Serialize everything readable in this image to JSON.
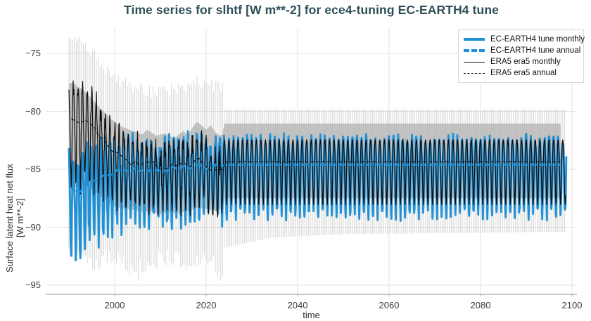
{
  "page": {
    "title": "Time series for slhtf [W m**-2] for ece4-tuning EC-EARTH4 tune"
  },
  "colors": {
    "title": "#2d4f57",
    "model_blue": "#2191d6",
    "ref_black": "#0d0d0d",
    "band_gray": "#9e9e9e",
    "whisker_gray": "#b4b4b4",
    "grid": "#e3e3e3",
    "spine": "#b8b8b8",
    "tick_text": "#3a3a3a"
  },
  "legend": {
    "items": [
      {
        "label": "EC-EARTH4 tune monthly",
        "swatch": "blue-solid"
      },
      {
        "label": "EC-EARTH4 tune annual",
        "swatch": "blue-dashed"
      },
      {
        "label": "ERA5 era5 monthly",
        "swatch": "black-solid"
      },
      {
        "label": "ERA5 era5 annual",
        "swatch": "black-dashed"
      }
    ]
  },
  "axes": {
    "x_label": "time",
    "y_label_line1": "Surface latent heat net flux",
    "y_label_line2": "[W m**-2]"
  },
  "chart_data": {
    "type": "line",
    "title": "Time series for slhtf [W m**-2] for ece4-tuning EC-EARTH4 tune",
    "xlabel": "time",
    "ylabel": "Surface latent heat net flux [W m**-2]",
    "xlim": [
      1984.9,
      2101.2
    ],
    "ylim": [
      -95.9,
      -72.8
    ],
    "xticks": [
      2000,
      2020,
      2040,
      2060,
      2080,
      2100
    ],
    "xtick_labels": [
      "2000",
      "2020",
      "2040",
      "2060",
      "2080",
      "2100"
    ],
    "yticks": [
      -75,
      -80,
      -85,
      -90,
      -95
    ],
    "ytick_labels": [
      "−75",
      "−80",
      "−85",
      "−90",
      "−95"
    ],
    "grid": true,
    "legend_position": "top-right",
    "months_per_year": 12,
    "series": [
      {
        "name": "EC-EARTH4 tune monthly",
        "role": "model_monthly",
        "color": "#2191d6",
        "width": 2.8,
        "dash": null,
        "start": 1990.0,
        "end": 2098.75,
        "mean_keyframes": [
          [
            1990,
            -86.6
          ],
          [
            1991,
            -86.9
          ],
          [
            1992,
            -87.0
          ],
          [
            1993,
            -86.6
          ],
          [
            1994,
            -86.4
          ],
          [
            1995,
            -86.2
          ],
          [
            1996,
            -86.1
          ],
          [
            1997,
            -85.8
          ],
          [
            1998,
            -85.6
          ],
          [
            2000,
            -85.3
          ],
          [
            2002,
            -85.15
          ],
          [
            2004,
            -85.05
          ],
          [
            2006,
            -85.15
          ],
          [
            2008,
            -85.25
          ],
          [
            2010,
            -85.1
          ],
          [
            2012,
            -85.0
          ],
          [
            2014,
            -84.95
          ],
          [
            2016,
            -84.9
          ],
          [
            2018,
            -84.85
          ],
          [
            2020,
            -84.8
          ],
          [
            2022,
            -84.75
          ],
          [
            2024,
            -84.65
          ],
          [
            2098,
            -84.6
          ]
        ],
        "seasonal_pattern": [
          2.2,
          1.8,
          0.9,
          -0.5,
          -2.1,
          -3.6,
          -4.3,
          -3.4,
          -1.6,
          0.3,
          1.5,
          2.1
        ],
        "amplitude_keyframes": [
          [
            1990,
            1.25
          ],
          [
            1996,
            1.18
          ],
          [
            2000,
            1.1
          ],
          [
            2005,
            1.0
          ],
          [
            2098,
            1.0
          ]
        ],
        "noise_hist": 1.1,
        "noise_future": 0.55,
        "noise_switch_year": 2024,
        "noise_seed": 7.7,
        "anomalies": [
          [
            1991.04,
            -1.3
          ],
          [
            2013.3,
            -1.6
          ]
        ]
      },
      {
        "name": "EC-EARTH4 tune annual",
        "role": "model_annual",
        "color": "#2191d6",
        "width": 2.8,
        "dash": [
          8,
          5
        ],
        "start": 1990.5,
        "end": 2098.3,
        "annual_of": 0,
        "steady_value": -84.6
      },
      {
        "name": "ERA5 era5 monthly",
        "role": "ref_monthly",
        "color": "#0d0d0d",
        "width": 1.2,
        "dash": null,
        "start": 1990.0,
        "end": 2098.6,
        "mean_keyframes": [
          [
            1990,
            -80.9
          ],
          [
            1991,
            -80.7
          ],
          [
            1992,
            -81.0
          ],
          [
            1993,
            -80.8
          ],
          [
            1994,
            -81.1
          ],
          [
            1995,
            -81.3
          ],
          [
            1996,
            -81.8
          ],
          [
            1997,
            -82.3
          ],
          [
            1998,
            -82.8
          ],
          [
            1999,
            -83.2
          ],
          [
            2000,
            -83.6
          ],
          [
            2001,
            -83.9
          ],
          [
            2002,
            -84.1
          ],
          [
            2003,
            -84.3
          ],
          [
            2004,
            -84.45
          ],
          [
            2005,
            -84.55
          ],
          [
            2006,
            -84.7
          ],
          [
            2007,
            -84.5
          ],
          [
            2008,
            -84.4
          ],
          [
            2009,
            -84.8
          ],
          [
            2010,
            -85.1
          ],
          [
            2011,
            -84.9
          ],
          [
            2012,
            -84.7
          ],
          [
            2013,
            -84.9
          ],
          [
            2014,
            -84.5
          ],
          [
            2015,
            -84.6
          ],
          [
            2016,
            -84.9
          ],
          [
            2017,
            -84.6
          ],
          [
            2018,
            -84.2
          ],
          [
            2019,
            -84.4
          ],
          [
            2020,
            -84.7
          ],
          [
            2021,
            -85.0
          ],
          [
            2022,
            -85.3
          ],
          [
            2023,
            -85.1
          ],
          [
            2023.99,
            -84.9
          ],
          [
            2024,
            -84.35
          ],
          [
            2098,
            -84.35
          ]
        ],
        "seasonal_pattern": [
          1.9,
          1.5,
          0.7,
          -0.4,
          -1.8,
          -3.1,
          -3.7,
          -2.9,
          -1.4,
          0.2,
          1.3,
          1.8
        ],
        "amplitude_keyframes": [
          [
            1990,
            1.45
          ],
          [
            1994,
            1.4
          ],
          [
            1997,
            1.3
          ],
          [
            2000,
            1.15
          ],
          [
            2004,
            1.0
          ],
          [
            2098,
            1.0
          ]
        ],
        "noise_hist": 1.0,
        "noise_future": 0.0,
        "noise_switch_year": 2024,
        "noise_seed": 3.1,
        "anomalies": [
          [
            2010.04,
            -2.2
          ],
          [
            2016.04,
            -1.5
          ],
          [
            2022.9,
            -2.6
          ]
        ]
      },
      {
        "name": "ERA5 era5 annual",
        "role": "ref_annual",
        "color": "#0d0d0d",
        "width": 1.1,
        "dash": [
          5,
          3
        ],
        "start": 1990.5,
        "end": 2098.3,
        "annual_of": 2,
        "steady_value": -84.35
      }
    ],
    "band": {
      "name": "reference min-max envelope",
      "color": "#9e9e9e",
      "alpha": 0.6,
      "start": 1990.0,
      "end": 2097.6,
      "top_keyframes": [
        [
          1990,
          -77.6
        ],
        [
          1991,
          -77.5
        ],
        [
          1992,
          -77.9
        ],
        [
          1993,
          -78.1
        ],
        [
          1994,
          -78.5
        ],
        [
          1995,
          -78.9
        ],
        [
          1996,
          -79.4
        ],
        [
          1997,
          -79.8
        ],
        [
          1998,
          -80.2
        ],
        [
          1999,
          -80.6
        ],
        [
          2000,
          -80.9
        ],
        [
          2001,
          -81.2
        ],
        [
          2002,
          -81.4
        ],
        [
          2003,
          -81.55
        ],
        [
          2004,
          -81.7
        ],
        [
          2005,
          -81.8
        ],
        [
          2006,
          -82.0
        ],
        [
          2007,
          -81.6
        ],
        [
          2008,
          -81.8
        ],
        [
          2009,
          -82.1
        ],
        [
          2010,
          -82.0
        ],
        [
          2011,
          -81.9
        ],
        [
          2012,
          -82.1
        ],
        [
          2013,
          -82.35
        ],
        [
          2014,
          -82.0
        ],
        [
          2015,
          -81.7
        ],
        [
          2016,
          -82.1
        ],
        [
          2017,
          -81.4
        ],
        [
          2018,
          -80.9
        ],
        [
          2019,
          -81.2
        ],
        [
          2020,
          -81.6
        ],
        [
          2021,
          -81.2
        ],
        [
          2022,
          -81.8
        ],
        [
          2023,
          -82.1
        ],
        [
          2023.99,
          -81.9
        ],
        [
          2024,
          -81.05
        ],
        [
          2097.6,
          -81.05
        ]
      ],
      "bottom_keyframes": [
        [
          1990,
          -86.4
        ],
        [
          1992,
          -86.6
        ],
        [
          1994,
          -86.6
        ],
        [
          1996,
          -87.0
        ],
        [
          1998,
          -87.7
        ],
        [
          2000,
          -88.2
        ],
        [
          2002,
          -88.4
        ],
        [
          2004,
          -88.5
        ],
        [
          2006,
          -88.7
        ],
        [
          2008,
          -88.6
        ],
        [
          2010,
          -88.9
        ],
        [
          2012,
          -88.7
        ],
        [
          2014,
          -88.8
        ],
        [
          2016,
          -88.6
        ],
        [
          2018,
          -88.3
        ],
        [
          2020,
          -88.4
        ],
        [
          2022,
          -88.6
        ],
        [
          2023.99,
          -88.3
        ],
        [
          2024,
          -87.5
        ],
        [
          2097.6,
          -87.5
        ]
      ]
    },
    "whiskers": {
      "name": "monthly min-max whiskers",
      "color": "#b4b4b4",
      "alpha": 0.5,
      "step_years": 0.4,
      "start": 1990.0,
      "end": 2098.6,
      "switch_year": 2024,
      "top_keyframes": [
        [
          1990,
          -73.9
        ],
        [
          1993,
          -74.0
        ],
        [
          1996,
          -75.2
        ],
        [
          1999,
          -76.8
        ],
        [
          2002,
          -77.6
        ],
        [
          2006,
          -78.2
        ],
        [
          2010,
          -78.4
        ],
        [
          2014,
          -78.0
        ],
        [
          2018,
          -77.4
        ],
        [
          2021,
          -77.8
        ],
        [
          2023.9,
          -78.0
        ],
        [
          2024,
          -79.85
        ],
        [
          2098,
          -79.85
        ]
      ],
      "bottom_keyframes": [
        [
          1990,
          -92.0
        ],
        [
          1993,
          -92.8
        ],
        [
          1996,
          -93.2
        ],
        [
          1999,
          -92.6
        ],
        [
          2002,
          -93.0
        ],
        [
          2005,
          -93.6
        ],
        [
          2008,
          -93.0
        ],
        [
          2011,
          -92.6
        ],
        [
          2014,
          -92.9
        ],
        [
          2017,
          -93.3
        ],
        [
          2020,
          -92.8
        ],
        [
          2023.9,
          -94.0
        ],
        [
          2024,
          -91.8
        ],
        [
          2034,
          -90.9
        ],
        [
          2050,
          -90.6
        ],
        [
          2098,
          -90.4
        ]
      ],
      "bottom_anomalies": [
        [
          2005.2,
          -94.6
        ],
        [
          2023.4,
          -94.6
        ]
      ]
    }
  }
}
